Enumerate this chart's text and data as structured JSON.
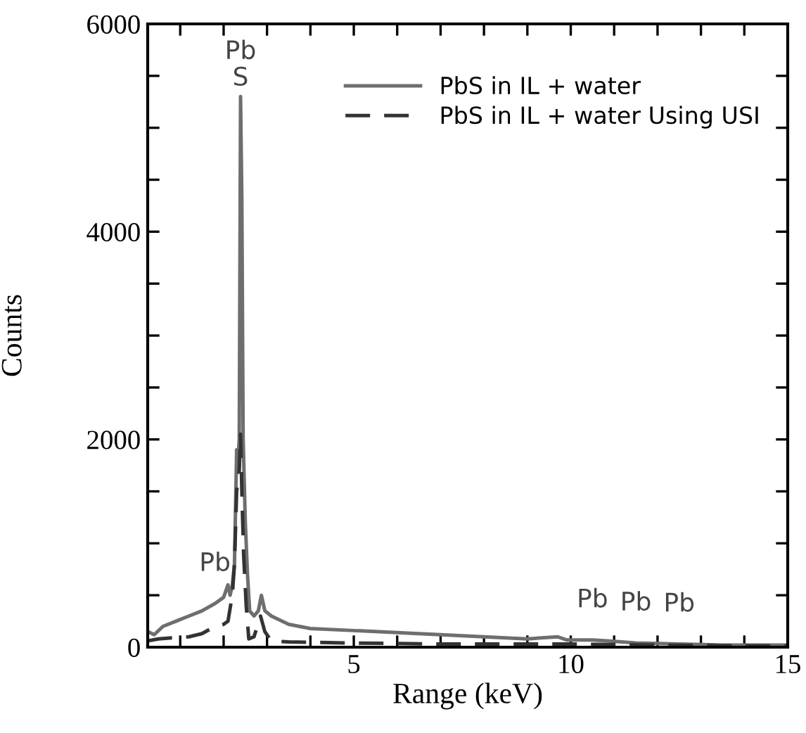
{
  "chart_data": {
    "type": "line",
    "xlabel": "Range (keV)",
    "ylabel": "Counts",
    "xlim": [
      0.25,
      15
    ],
    "ylim": [
      0,
      6000
    ],
    "xticks": [
      {
        "value": 1,
        "label": null
      },
      {
        "value": 2,
        "label": null
      },
      {
        "value": 3,
        "label": null
      },
      {
        "value": 4,
        "label": null
      },
      5,
      {
        "value": 6,
        "label": null
      },
      {
        "value": 7,
        "label": null
      },
      {
        "value": 8,
        "label": null
      },
      {
        "value": 9,
        "label": null
      },
      10,
      {
        "value": 11,
        "label": null
      },
      {
        "value": 12,
        "label": null
      },
      {
        "value": 13,
        "label": null
      },
      {
        "value": 14,
        "label": null
      },
      15
    ],
    "yticks": [
      0,
      {
        "value": 500,
        "label": null
      },
      {
        "value": 1000,
        "label": null
      },
      {
        "value": 1500,
        "label": null
      },
      2000,
      {
        "value": 2500,
        "label": null
      },
      {
        "value": 3000,
        "label": null
      },
      {
        "value": 3500,
        "label": null
      },
      4000,
      {
        "value": 4500,
        "label": null
      },
      {
        "value": 5000,
        "label": null
      },
      {
        "value": 5500,
        "label": null
      },
      6000
    ],
    "legend": "top right",
    "grid": false,
    "series": [
      {
        "name": "PbS in IL + water",
        "color": "#6e6e6e",
        "line_style": "solid",
        "x": [
          0.25,
          0.4,
          0.6,
          0.9,
          1.2,
          1.5,
          1.8,
          2.0,
          2.1,
          2.15,
          2.2,
          2.25,
          2.3,
          2.33,
          2.36,
          2.39,
          2.42,
          2.45,
          2.5,
          2.55,
          2.6,
          2.7,
          2.8,
          2.87,
          2.95,
          3.1,
          3.5,
          4,
          5,
          6,
          7,
          8,
          9,
          9.7,
          9.9,
          10.5,
          10.9,
          11.5,
          12.5,
          13.5,
          15
        ],
        "values": [
          150,
          120,
          200,
          250,
          300,
          350,
          420,
          480,
          600,
          500,
          600,
          800,
          1900,
          1800,
          2000,
          5300,
          4300,
          2000,
          1200,
          700,
          350,
          300,
          350,
          500,
          350,
          300,
          220,
          180,
          160,
          140,
          120,
          100,
          80,
          100,
          70,
          70,
          60,
          40,
          30,
          20,
          20
        ]
      },
      {
        "name": "PbS in IL + water Using USI",
        "color": "#333333",
        "line_style": "dashed",
        "x": [
          0.25,
          0.5,
          0.8,
          1.2,
          1.5,
          1.8,
          2.0,
          2.1,
          2.2,
          2.25,
          2.3,
          2.36,
          2.39,
          2.42,
          2.46,
          2.52,
          2.58,
          2.7,
          2.85,
          2.95,
          3.1,
          3.5,
          5,
          7,
          10,
          12,
          15
        ],
        "values": [
          60,
          80,
          90,
          100,
          130,
          200,
          220,
          250,
          500,
          800,
          1500,
          1700,
          2050,
          1500,
          900,
          400,
          80,
          100,
          300,
          150,
          60,
          50,
          40,
          30,
          30,
          20,
          10
        ]
      }
    ],
    "annotations": [
      {
        "text": "Pb\nS",
        "x": 2.39,
        "y": 5300
      },
      {
        "text": "Pb",
        "x": 1.8,
        "y": 420
      },
      {
        "text": "Pb",
        "x": 10.5,
        "y": 70
      },
      {
        "text": "Pb",
        "x": 11.5,
        "y": 40
      },
      {
        "text": "Pb",
        "x": 12.5,
        "y": 30
      }
    ]
  }
}
